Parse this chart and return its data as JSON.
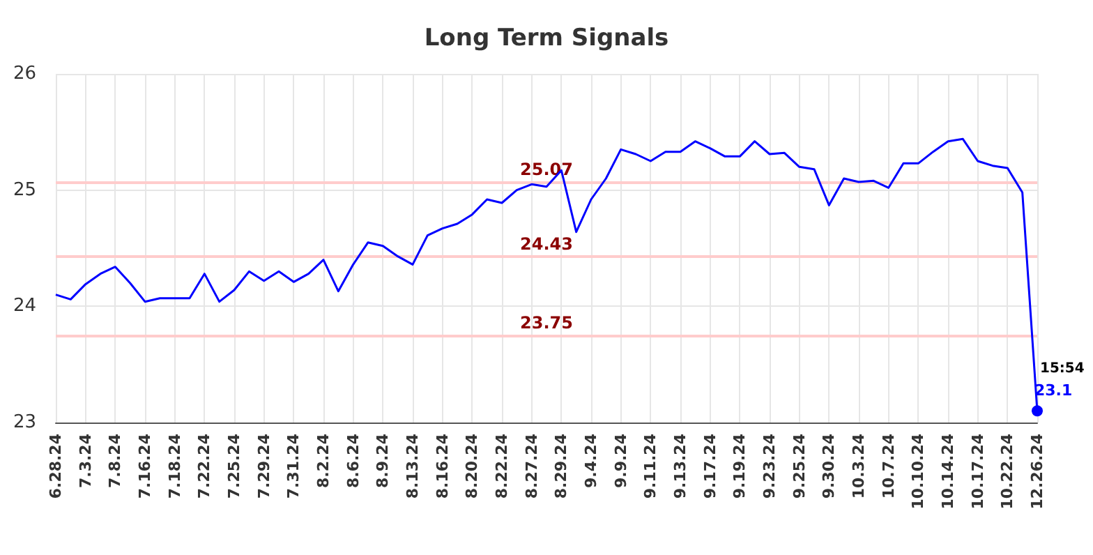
{
  "chart_data": {
    "type": "line",
    "title": "Long Term Signals",
    "categories": [
      "6.28.24",
      null,
      "7.3.24",
      null,
      "7.8.24",
      null,
      "7.16.24",
      null,
      "7.18.24",
      null,
      "7.22.24",
      null,
      "7.25.24",
      null,
      "7.29.24",
      null,
      "7.31.24",
      null,
      "8.2.24",
      null,
      "8.6.24",
      null,
      "8.9.24",
      null,
      "8.13.24",
      null,
      "8.16.24",
      null,
      "8.20.24",
      null,
      "8.22.24",
      null,
      "8.27.24",
      null,
      "8.29.24",
      null,
      "9.4.24",
      null,
      "9.9.24",
      null,
      "9.11.24",
      null,
      "9.13.24",
      null,
      "9.17.24",
      null,
      "9.19.24",
      null,
      "9.23.24",
      null,
      "9.25.24",
      null,
      "9.30.24",
      null,
      "10.3.24",
      null,
      "10.7.24",
      null,
      "10.10.24",
      null,
      "10.14.24",
      null,
      "10.17.24",
      null,
      "10.22.24",
      null,
      "12.26.24"
    ],
    "series": [
      {
        "color": "#0000ff",
        "values": [
          24.1,
          24.06,
          24.19,
          24.28,
          24.34,
          24.2,
          24.04,
          24.07,
          24.07,
          24.07,
          24.28,
          24.04,
          24.14,
          24.3,
          24.22,
          24.3,
          24.21,
          24.28,
          24.4,
          24.13,
          24.36,
          24.55,
          24.52,
          24.43,
          24.36,
          24.61,
          24.67,
          24.71,
          24.79,
          24.92,
          24.89,
          25.0,
          25.05,
          25.03,
          25.17,
          24.64,
          24.92,
          25.1,
          25.35,
          25.31,
          25.25,
          25.33,
          25.33,
          25.42,
          25.36,
          25.29,
          25.29,
          25.42,
          25.31,
          25.32,
          25.2,
          25.18,
          24.87,
          25.1,
          25.07,
          25.08,
          25.02,
          25.23,
          25.23,
          25.33,
          25.42,
          25.44,
          25.25,
          25.21,
          25.19,
          24.98,
          23.1
        ],
        "value_labels": [
          null,
          null,
          null,
          null,
          null,
          null,
          null,
          null,
          null,
          null,
          null,
          null,
          null,
          null,
          null,
          null,
          null,
          null,
          null,
          null,
          null,
          null,
          null,
          null,
          null,
          null,
          null,
          null,
          null,
          null,
          null,
          null,
          null,
          null,
          null,
          null,
          null,
          null,
          null,
          null,
          null,
          null,
          null,
          null,
          null,
          null,
          null,
          null,
          null,
          null,
          null,
          null,
          null,
          null,
          null,
          null,
          null,
          null,
          null,
          null,
          null,
          null,
          null,
          null,
          null,
          null,
          "23.1"
        ]
      }
    ],
    "ylim": [
      23,
      26
    ],
    "yticks": [
      23,
      24,
      25,
      26
    ],
    "grid": true,
    "ref_lines": [
      {
        "axis": "y",
        "value": 25.07,
        "label": "25.07",
        "color": "#ffcccc"
      },
      {
        "axis": "y",
        "value": 24.43,
        "label": "24.43",
        "color": "#ffcccc"
      },
      {
        "axis": "y",
        "value": 23.75,
        "label": "23.75",
        "color": "#ffcccc"
      }
    ],
    "annotations": [
      {
        "text": "15:54",
        "x": "12.26.24",
        "y": 23.1
      }
    ]
  }
}
